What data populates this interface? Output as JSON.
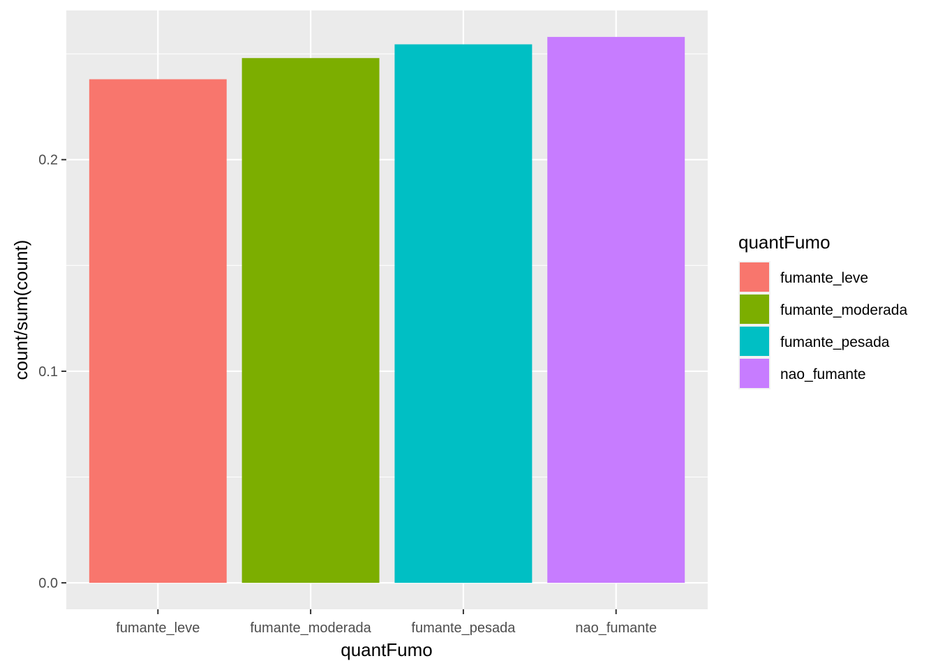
{
  "chart_data": {
    "type": "bar",
    "categories": [
      "fumante_leve",
      "fumante_moderada",
      "fumante_pesada",
      "nao_fumante"
    ],
    "values": [
      0.238,
      0.248,
      0.2545,
      0.258
    ],
    "colors": [
      "#F8766D",
      "#7CAE00",
      "#00BFC4",
      "#C77CFF"
    ],
    "xlabel": "quantFumo",
    "ylabel": "count/sum(count)",
    "ylim": [
      -0.0125,
      0.2705
    ],
    "yticks": [
      0.0,
      0.1,
      0.2
    ],
    "ytick_labels": [
      "0.0",
      "0.1",
      "0.2"
    ],
    "grid": true,
    "panel_background": "#EBEBEB",
    "legend": {
      "title": "quantFumo",
      "position": "right",
      "items": [
        "fumante_leve",
        "fumante_moderada",
        "fumante_pesada",
        "nao_fumante"
      ]
    }
  }
}
